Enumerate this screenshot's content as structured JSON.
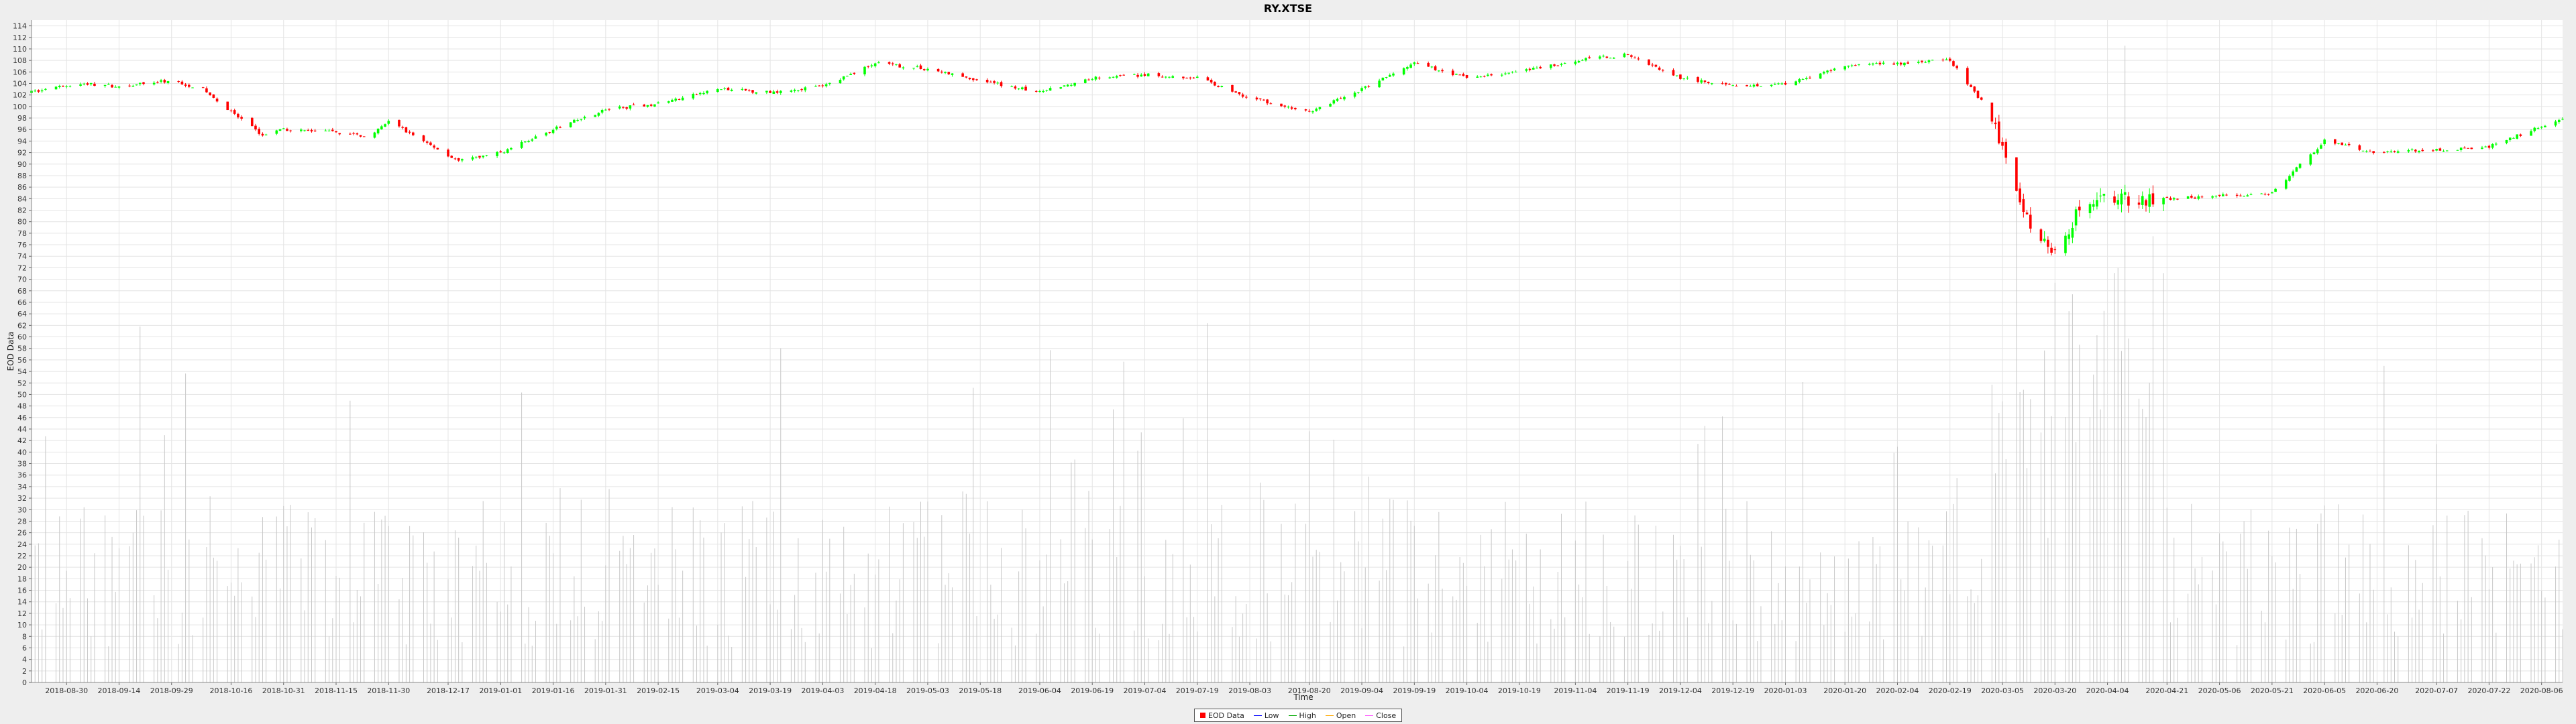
{
  "chart_data": {
    "type": "candlestick",
    "title": "RY.XTSE",
    "xlabel": "Time",
    "ylabel": "EOD Data",
    "ylim": [
      0,
      115
    ],
    "y_ticks": [
      0,
      2,
      4,
      6,
      8,
      10,
      12,
      14,
      16,
      18,
      20,
      22,
      24,
      26,
      28,
      30,
      32,
      34,
      36,
      38,
      40,
      42,
      44,
      46,
      48,
      50,
      52,
      54,
      56,
      58,
      60,
      62,
      64,
      66,
      68,
      70,
      72,
      74,
      76,
      78,
      80,
      82,
      84,
      86,
      88,
      90,
      92,
      94,
      96,
      98,
      100,
      102,
      104,
      106,
      108,
      110,
      112,
      114
    ],
    "x_range": [
      "2018-08-20",
      "2020-08-12"
    ],
    "x_ticks": [
      "2018-08-30",
      "2018-09-14",
      "2018-09-29",
      "2018-10-16",
      "2018-10-31",
      "2018-11-15",
      "2018-11-30",
      "2018-12-17",
      "2019-01-01",
      "2019-01-16",
      "2019-01-31",
      "2019-02-15",
      "2019-03-04",
      "2019-03-19",
      "2019-04-03",
      "2019-04-18",
      "2019-05-03",
      "2019-05-18",
      "2019-06-04",
      "2019-06-19",
      "2019-07-04",
      "2019-07-19",
      "2019-08-03",
      "2019-08-20",
      "2019-09-04",
      "2019-09-19",
      "2019-10-04",
      "2019-10-19",
      "2019-11-04",
      "2019-11-19",
      "2019-12-04",
      "2019-12-19",
      "2020-01-03",
      "2020-01-20",
      "2020-02-04",
      "2020-02-19",
      "2020-03-05",
      "2020-03-20",
      "2020-04-04",
      "2020-04-21",
      "2020-05-06",
      "2020-05-21",
      "2020-06-05",
      "2020-06-20",
      "2020-07-07",
      "2020-07-22",
      "2020-08-06"
    ],
    "price_path": [
      [
        "2018-08-20",
        102.5
      ],
      [
        "2018-09-03",
        104.0
      ],
      [
        "2018-09-14",
        103.5
      ],
      [
        "2018-09-29",
        104.5
      ],
      [
        "2018-10-08",
        103.0
      ],
      [
        "2018-10-16",
        99.0
      ],
      [
        "2018-10-25",
        95.0
      ],
      [
        "2018-10-31",
        96.0
      ],
      [
        "2018-11-15",
        95.5
      ],
      [
        "2018-11-25",
        94.8
      ],
      [
        "2018-11-30",
        97.5
      ],
      [
        "2018-12-10",
        94.0
      ],
      [
        "2018-12-20",
        90.5
      ],
      [
        "2019-01-01",
        92.0
      ],
      [
        "2019-01-16",
        96.0
      ],
      [
        "2019-01-31",
        99.5
      ],
      [
        "2019-02-15",
        100.5
      ],
      [
        "2019-03-04",
        103.0
      ],
      [
        "2019-03-19",
        102.5
      ],
      [
        "2019-04-03",
        103.5
      ],
      [
        "2019-04-18",
        107.5
      ],
      [
        "2019-05-03",
        106.5
      ],
      [
        "2019-05-18",
        104.5
      ],
      [
        "2019-06-04",
        102.5
      ],
      [
        "2019-06-19",
        105.0
      ],
      [
        "2019-07-04",
        105.5
      ],
      [
        "2019-07-19",
        105.0
      ],
      [
        "2019-08-03",
        101.5
      ],
      [
        "2019-08-20",
        99.0
      ],
      [
        "2019-09-04",
        103.0
      ],
      [
        "2019-09-19",
        107.5
      ],
      [
        "2019-10-04",
        105.0
      ],
      [
        "2019-10-19",
        106.0
      ],
      [
        "2019-11-04",
        108.0
      ],
      [
        "2019-11-19",
        109.0
      ],
      [
        "2019-12-04",
        105.0
      ],
      [
        "2019-12-19",
        103.5
      ],
      [
        "2020-01-03",
        104.0
      ],
      [
        "2020-01-20",
        107.0
      ],
      [
        "2020-02-04",
        107.5
      ],
      [
        "2020-02-19",
        108.0
      ],
      [
        "2020-02-28",
        101.0
      ],
      [
        "2020-03-05",
        93.0
      ],
      [
        "2020-03-12",
        80.0
      ],
      [
        "2020-03-20",
        75.0
      ],
      [
        "2020-03-27",
        82.0
      ],
      [
        "2020-04-04",
        84.0
      ],
      [
        "2020-04-21",
        84.0
      ],
      [
        "2020-05-06",
        84.5
      ],
      [
        "2020-05-21",
        85.0
      ],
      [
        "2020-06-05",
        94.0
      ],
      [
        "2020-06-20",
        92.0
      ],
      [
        "2020-07-07",
        92.5
      ],
      [
        "2020-07-22",
        93.0
      ],
      [
        "2020-08-12",
        98.0
      ]
    ],
    "series": [
      {
        "name": "EOD Data",
        "color": "#ff0000"
      },
      {
        "name": "Low",
        "color": "#0000ff"
      },
      {
        "name": "High",
        "color": "#00aa00"
      },
      {
        "name": "Open",
        "color": "#ffaa00"
      },
      {
        "name": "Close",
        "color": "#ff55ff"
      }
    ],
    "up_color": "#00ff00",
    "down_color": "#ff0000",
    "volume_color": "#c8c8c8",
    "grid": true,
    "legend_position": "bottom-center"
  }
}
